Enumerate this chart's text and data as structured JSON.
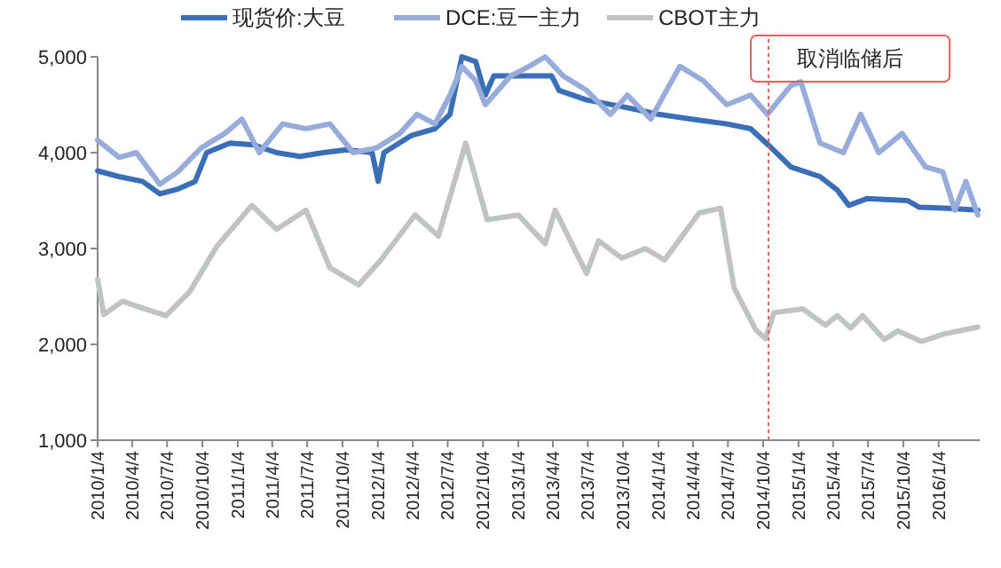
{
  "chart_data": {
    "type": "line",
    "legend": "top",
    "grid": false,
    "line_style": "solid",
    "marker": "none",
    "xlim": [
      "2010-01-04",
      "2016-04-20"
    ],
    "xticks": [
      {
        "value": "2010-01-04",
        "label": "2010/1/4"
      },
      {
        "value": "2010-04-04",
        "label": "2010/4/4"
      },
      {
        "value": "2010-07-04",
        "label": "2010/7/4"
      },
      {
        "value": "2010-10-04",
        "label": "2010/10/4"
      },
      {
        "value": "2011-01-04",
        "label": "2011/1/4"
      },
      {
        "value": "2011-04-04",
        "label": "2011/4/4"
      },
      {
        "value": "2011-07-04",
        "label": "2011/7/4"
      },
      {
        "value": "2011-10-04",
        "label": "2011/10/4"
      },
      {
        "value": "2012-01-04",
        "label": "2012/1/4"
      },
      {
        "value": "2012-04-04",
        "label": "2012/4/4"
      },
      {
        "value": "2012-07-04",
        "label": "2012/7/4"
      },
      {
        "value": "2012-10-04",
        "label": "2012/10/4"
      },
      {
        "value": "2013-01-04",
        "label": "2013/1/4"
      },
      {
        "value": "2013-04-04",
        "label": "2013/4/4"
      },
      {
        "value": "2013-07-04",
        "label": "2013/7/4"
      },
      {
        "value": "2013-10-04",
        "label": "2013/10/4"
      },
      {
        "value": "2014-01-04",
        "label": "2014/1/4"
      },
      {
        "value": "2014-04-04",
        "label": "2014/4/4"
      },
      {
        "value": "2014-07-04",
        "label": "2014/7/4"
      },
      {
        "value": "2014-10-04",
        "label": "2014/10/4"
      },
      {
        "value": "2015-01-04",
        "label": "2015/1/4"
      },
      {
        "value": "2015-04-04",
        "label": "2015/4/4"
      },
      {
        "value": "2015-07-04",
        "label": "2015/7/4"
      },
      {
        "value": "2015-10-04",
        "label": "2015/10/4"
      },
      {
        "value": "2016-01-04",
        "label": "2016/1/4"
      }
    ],
    "ylim": [
      1000,
      5000
    ],
    "yticks": [
      {
        "value": 1000,
        "label": "1,000"
      },
      {
        "value": 2000,
        "label": "2,000"
      },
      {
        "value": 3000,
        "label": "3,000"
      },
      {
        "value": 4000,
        "label": "4,000"
      },
      {
        "value": 5000,
        "label": "5,000"
      }
    ],
    "ref_lines": [
      {
        "axis": "x",
        "value": "2014-10-18",
        "label": "取消临储后",
        "color": "#e06060",
        "line_style": "dotted"
      }
    ],
    "series": [
      {
        "name": "现货价:大豆",
        "color": "#3a6fb8",
        "x": [
          "2010-01-04",
          "2010-03-01",
          "2010-05-01",
          "2010-06-15",
          "2010-08-01",
          "2010-09-15",
          "2010-10-15",
          "2010-12-15",
          "2011-02-15",
          "2011-04-15",
          "2011-06-15",
          "2011-08-15",
          "2011-10-15",
          "2011-12-20",
          "2012-01-05",
          "2012-01-20",
          "2012-04-01",
          "2012-06-01",
          "2012-07-10",
          "2012-08-10",
          "2012-09-15",
          "2012-10-10",
          "2012-11-01",
          "2013-01-15",
          "2013-04-01",
          "2013-04-20",
          "2013-07-01",
          "2013-10-01",
          "2014-01-04",
          "2014-04-01",
          "2014-07-01",
          "2014-09-01",
          "2014-10-20",
          "2014-12-15",
          "2015-03-01",
          "2015-04-15",
          "2015-05-15",
          "2015-07-01",
          "2015-10-15",
          "2015-11-15",
          "2016-02-01",
          "2016-04-15"
        ],
        "values": [
          3810,
          3750,
          3700,
          3570,
          3620,
          3700,
          4000,
          4100,
          4080,
          4000,
          3960,
          4000,
          4030,
          4000,
          3700,
          4000,
          4180,
          4250,
          4400,
          5000,
          4950,
          4600,
          4800,
          4800,
          4800,
          4650,
          4550,
          4480,
          4400,
          4350,
          4300,
          4250,
          4070,
          3850,
          3750,
          3610,
          3450,
          3520,
          3500,
          3430,
          3420,
          3400
        ]
      },
      {
        "name": "DCE:豆一主力",
        "color": "#98acdc",
        "x": [
          "2010-01-04",
          "2010-03-01",
          "2010-04-15",
          "2010-06-15",
          "2010-08-01",
          "2010-10-01",
          "2010-12-01",
          "2011-01-15",
          "2011-03-01",
          "2011-05-01",
          "2011-07-01",
          "2011-09-01",
          "2011-11-01",
          "2012-01-01",
          "2012-03-01",
          "2012-04-15",
          "2012-06-01",
          "2012-07-10",
          "2012-08-10",
          "2012-09-15",
          "2012-10-10",
          "2012-12-15",
          "2013-02-01",
          "2013-03-15",
          "2013-05-01",
          "2013-07-01",
          "2013-09-01",
          "2013-10-15",
          "2013-12-15",
          "2014-02-01",
          "2014-03-01",
          "2014-05-01",
          "2014-07-01",
          "2014-09-01",
          "2014-10-15",
          "2014-12-15",
          "2015-01-10",
          "2015-03-01",
          "2015-05-01",
          "2015-06-15",
          "2015-08-01",
          "2015-10-01",
          "2015-12-01",
          "2016-01-15",
          "2016-02-15",
          "2016-03-15",
          "2016-04-15"
        ],
        "values": [
          4130,
          3950,
          4000,
          3670,
          3800,
          4050,
          4200,
          4350,
          4000,
          4300,
          4250,
          4300,
          4000,
          4050,
          4200,
          4400,
          4300,
          4600,
          4900,
          4750,
          4500,
          4800,
          4900,
          5000,
          4800,
          4650,
          4400,
          4600,
          4350,
          4700,
          4900,
          4750,
          4500,
          4600,
          4400,
          4700,
          4740,
          4100,
          4000,
          4400,
          4000,
          4200,
          3850,
          3800,
          3400,
          3700,
          3350
        ]
      },
      {
        "name": "CBOT主力",
        "color": "#bfc3c3",
        "x": [
          "2010-01-04",
          "2010-01-20",
          "2010-03-10",
          "2010-04-15",
          "2010-07-01",
          "2010-09-01",
          "2010-11-10",
          "2011-02-10",
          "2011-04-15",
          "2011-07-01",
          "2011-09-01",
          "2011-11-15",
          "2012-01-10",
          "2012-04-10",
          "2012-06-10",
          "2012-08-20",
          "2012-10-15",
          "2013-01-04",
          "2013-03-15",
          "2013-04-10",
          "2013-07-01",
          "2013-08-01",
          "2013-10-01",
          "2013-12-01",
          "2014-01-20",
          "2014-04-20",
          "2014-06-15",
          "2014-07-20",
          "2014-09-15",
          "2014-10-10",
          "2014-11-01",
          "2015-01-15",
          "2015-03-15",
          "2015-04-15",
          "2015-05-20",
          "2015-06-20",
          "2015-08-15",
          "2015-09-20",
          "2015-11-20",
          "2016-01-20",
          "2016-04-15"
        ],
        "values": [
          2680,
          2310,
          2450,
          2400,
          2300,
          2550,
          3020,
          3450,
          3200,
          3400,
          2800,
          2620,
          2870,
          3350,
          3130,
          4100,
          3300,
          3350,
          3050,
          3400,
          2740,
          3080,
          2900,
          3000,
          2880,
          3370,
          3420,
          2590,
          2150,
          2060,
          2330,
          2370,
          2200,
          2300,
          2170,
          2300,
          2050,
          2140,
          2030,
          2110,
          2180
        ]
      }
    ]
  }
}
